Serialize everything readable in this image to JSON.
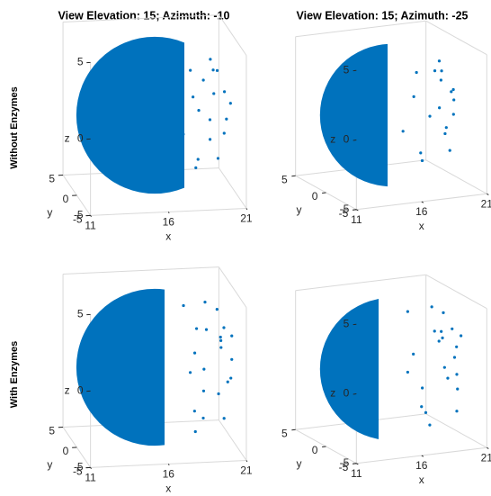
{
  "chart_data": {
    "type": "scatter3d",
    "color": "#0072bd",
    "views": [
      {
        "title": "View Elevation: 15; Azimuth: -10",
        "elevation": 15,
        "azimuth": -10
      },
      {
        "title": "View Elevation: 15; Azimuth: -25",
        "elevation": 15,
        "azimuth": -25
      }
    ],
    "rows": [
      {
        "label": "Without Enzymes",
        "x": [
          18.5,
          19.2,
          20.1,
          19.8,
          18.9,
          20.6,
          19.5,
          18.3,
          20.9,
          19.1,
          18.7,
          20.3,
          19.9,
          18.4,
          20.5,
          19.3,
          18.8,
          20.0
        ],
        "y": [
          1.2,
          -2.0,
          0.5,
          -1.5,
          2.5,
          0.8,
          -0.4,
          -3.0,
          0.2,
          1.8,
          -2.4,
          -1.0,
          2.0,
          3.2,
          -0.6,
          -2.8,
          0.9,
          1.4
        ],
        "z": [
          2.5,
          -1.2,
          2.6,
          -2.6,
          0.4,
          -1.6,
          3.6,
          1.0,
          0.5,
          -3.5,
          2.8,
          1.6,
          -1.0,
          -2.2,
          -0.3,
          2.0,
          -3.8,
          2.4
        ]
      },
      {
        "label": "With Enzymes",
        "x": [
          18.2,
          19.0,
          20.4,
          20.8,
          19.6,
          18.6,
          20.1,
          19.3,
          21.0,
          18.9,
          20.6,
          19.8,
          18.4,
          20.3,
          19.1,
          20.9,
          18.7,
          19.5,
          20.0,
          18.3,
          20.7,
          19.4
        ],
        "y": [
          2.0,
          -1.8,
          1.0,
          -0.5,
          2.6,
          -3.2,
          -2.0,
          0.4,
          0.3,
          3.5,
          2.0,
          -2.6,
          -1.2,
          -0.8,
          3.0,
          1.2,
          0.8,
          -3.4,
          0.0,
          -2.2,
          -1.4,
          1.6
        ],
        "z": [
          3.4,
          2.8,
          1.5,
          -0.8,
          -2.4,
          0.6,
          -3.0,
          4.0,
          0.2,
          -1.4,
          1.0,
          1.8,
          -4.0,
          2.6,
          0.0,
          -1.5,
          -3.2,
          -1.0,
          3.6,
          3.0,
          2.2,
          -3.9
        ]
      }
    ],
    "xlabel": "x",
    "ylabel": "y",
    "zlabel": "z",
    "xlim": [
      11,
      21
    ],
    "ylim": [
      -5,
      5
    ],
    "zlim": [
      -5,
      5
    ],
    "xticks": [
      11,
      16,
      21
    ],
    "yticks": [
      -5,
      0,
      5
    ],
    "zticks": [
      -5,
      0,
      5
    ]
  }
}
